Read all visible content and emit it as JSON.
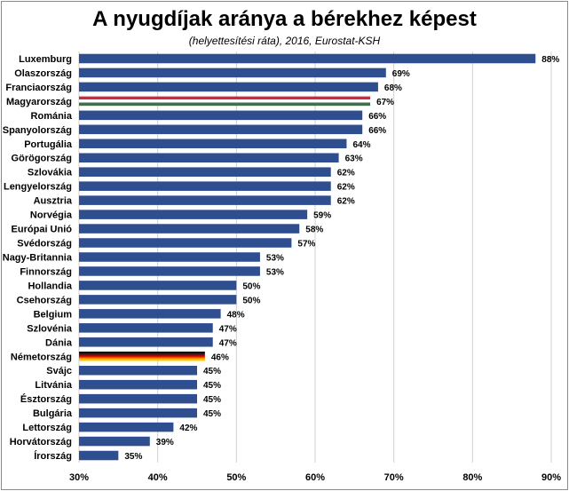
{
  "chart_data": {
    "type": "bar",
    "orientation": "horizontal",
    "title": "A nyugdíjak aránya a bérekhez képest",
    "subtitle": "(helyettesítési ráta), 2016,  Eurostat-KSH",
    "xlim": [
      30,
      90
    ],
    "x_ticks": [
      "30%",
      "40%",
      "50%",
      "60%",
      "70%",
      "80%",
      "90%"
    ],
    "gridlines": "vertical",
    "bar_color": "#2e4e8f",
    "highlight": {
      "Magyarország": "hungarian-flag",
      "Németország": "german-flag"
    },
    "categories": [
      "Luxemburg",
      "Olaszország",
      "Franciaország",
      "Magyarország",
      "Románia",
      "Spanyolország",
      "Portugália",
      "Görögország",
      "Szlovákia",
      "Lengyelország",
      "Ausztria",
      "Norvégia",
      "Európai Unió",
      "Svédország",
      "Nagy-Britannia",
      "Finnország",
      "Hollandia",
      "Csehország",
      "Belgium",
      "Szlovénia",
      "Dánia",
      "Németország",
      "Svájc",
      "Litvánia",
      "Észtország",
      "Bulgária",
      "Lettország",
      "Horvátország",
      "Írország"
    ],
    "values": [
      88,
      69,
      68,
      67,
      66,
      66,
      64,
      63,
      62,
      62,
      62,
      59,
      58,
      57,
      53,
      53,
      50,
      50,
      48,
      47,
      47,
      46,
      45,
      45,
      45,
      45,
      42,
      39,
      35
    ],
    "value_labels": [
      "88%",
      "69%",
      "68%",
      "67%",
      "66%",
      "66%",
      "64%",
      "63%",
      "62%",
      "62%",
      "62%",
      "59%",
      "58%",
      "57%",
      "53%",
      "53%",
      "50%",
      "50%",
      "48%",
      "47%",
      "47%",
      "46%",
      "45%",
      "45%",
      "45%",
      "45%",
      "42%",
      "39%",
      "35%"
    ]
  }
}
